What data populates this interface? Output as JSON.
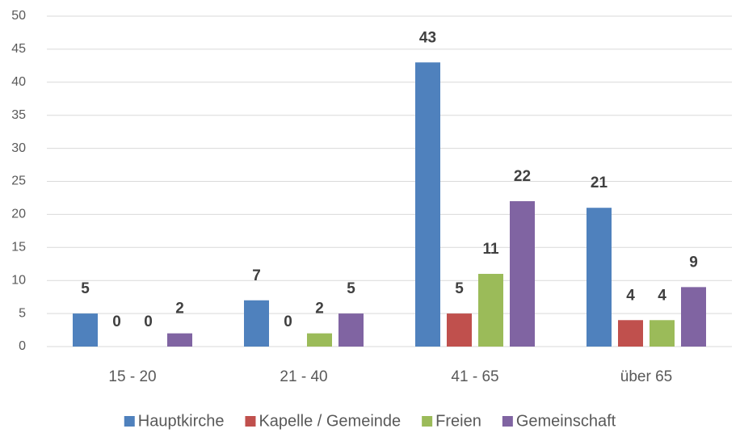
{
  "chart_data": {
    "type": "bar",
    "categories": [
      "15 - 20",
      "21 - 40",
      "41 - 65",
      "über 65"
    ],
    "series": [
      {
        "name": "Hauptkirche",
        "color": "#4f81bd",
        "values": [
          5,
          7,
          43,
          21
        ]
      },
      {
        "name": "Kapelle / Gemeinde",
        "color": "#c0504d",
        "values": [
          0,
          0,
          5,
          4
        ]
      },
      {
        "name": "Freien",
        "color": "#9bbb59",
        "values": [
          0,
          2,
          11,
          4
        ]
      },
      {
        "name": "Gemeinschaft",
        "color": "#8064a2",
        "values": [
          2,
          5,
          22,
          9
        ]
      }
    ],
    "ylim": [
      0,
      50
    ],
    "yticks": [
      0,
      5,
      10,
      15,
      20,
      25,
      30,
      35,
      40,
      45,
      50
    ],
    "grid": true,
    "legend": "bottom"
  }
}
